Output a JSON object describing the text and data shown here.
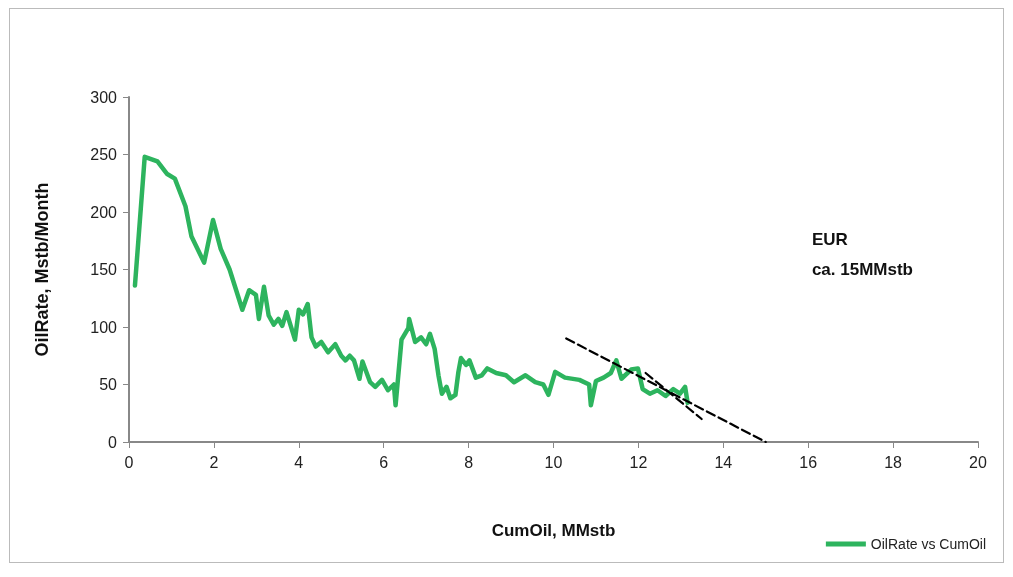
{
  "chart_data": {
    "type": "line",
    "xlabel": "CumOil, MMstb",
    "ylabel": "OilRate, Mstb/Month",
    "annotations": [
      "EUR\nca. 15MMstb"
    ],
    "xlim": [
      0,
      20
    ],
    "xticks": [
      0,
      2,
      4,
      6,
      8,
      10,
      12,
      14,
      16,
      18,
      20
    ],
    "ylim": [
      0,
      300
    ],
    "yticks": [
      0,
      50,
      100,
      150,
      200,
      250,
      300
    ],
    "grid": false,
    "legend": "bottom right",
    "marker": "none",
    "series": [
      {
        "name": "OilRate vs CumOil",
        "color": "#2db45e",
        "line_style": "solid",
        "x": [
          0.14,
          0.37,
          0.67,
          0.9,
          1.08,
          1.33,
          1.47,
          1.77,
          1.98,
          2.16,
          2.37,
          2.67,
          2.83,
          2.99,
          3.06,
          3.18,
          3.29,
          3.41,
          3.52,
          3.61,
          3.71,
          3.91,
          4.0,
          4.1,
          4.21,
          4.3,
          4.4,
          4.53,
          4.69,
          4.86,
          5.0,
          5.1,
          5.2,
          5.3,
          5.43,
          5.5,
          5.68,
          5.8,
          5.96,
          6.1,
          6.24,
          6.28,
          6.42,
          6.58,
          6.6,
          6.74,
          6.88,
          7.0,
          7.09,
          7.2,
          7.29,
          7.37,
          7.48,
          7.57,
          7.69,
          7.76,
          7.82,
          7.94,
          8.02,
          8.17,
          8.31,
          8.44,
          8.65,
          8.88,
          9.07,
          9.34,
          9.57,
          9.76,
          9.88,
          10.04,
          10.27,
          10.61,
          10.84,
          10.88,
          11.0,
          11.18,
          11.35,
          11.48,
          11.6,
          11.83,
          11.99,
          12.1,
          12.27,
          12.45,
          12.64,
          12.82,
          12.98,
          13.1,
          13.16
        ],
        "values": [
          136,
          248,
          244,
          233,
          229,
          205,
          179,
          156,
          193,
          168,
          150,
          115,
          132,
          128,
          107,
          135,
          110,
          102,
          107,
          101,
          113,
          89,
          115,
          111,
          120,
          91,
          83,
          87,
          78,
          85,
          75,
          71,
          75,
          71,
          55,
          70,
          52,
          48,
          54,
          45,
          50,
          32,
          89,
          99,
          107,
          87,
          91,
          85,
          94,
          81,
          58,
          42,
          48,
          38,
          41,
          61,
          73,
          67,
          71,
          56,
          58,
          64,
          60,
          58,
          52,
          58,
          52,
          50,
          41,
          61,
          56,
          54,
          50,
          32,
          53,
          56,
          60,
          71,
          55,
          63,
          64,
          46,
          42,
          45,
          40,
          46,
          42,
          48,
          34
        ]
      },
      {
        "type": "line",
        "color": "#000000",
        "line_style": "dashed",
        "x": [
          10.3,
          15.0
        ],
        "values": [
          90,
          0
        ]
      },
      {
        "type": "line",
        "color": "#000000",
        "line_style": "dashed",
        "x": [
          12.17,
          13.49
        ],
        "values": [
          60,
          20
        ]
      }
    ]
  }
}
